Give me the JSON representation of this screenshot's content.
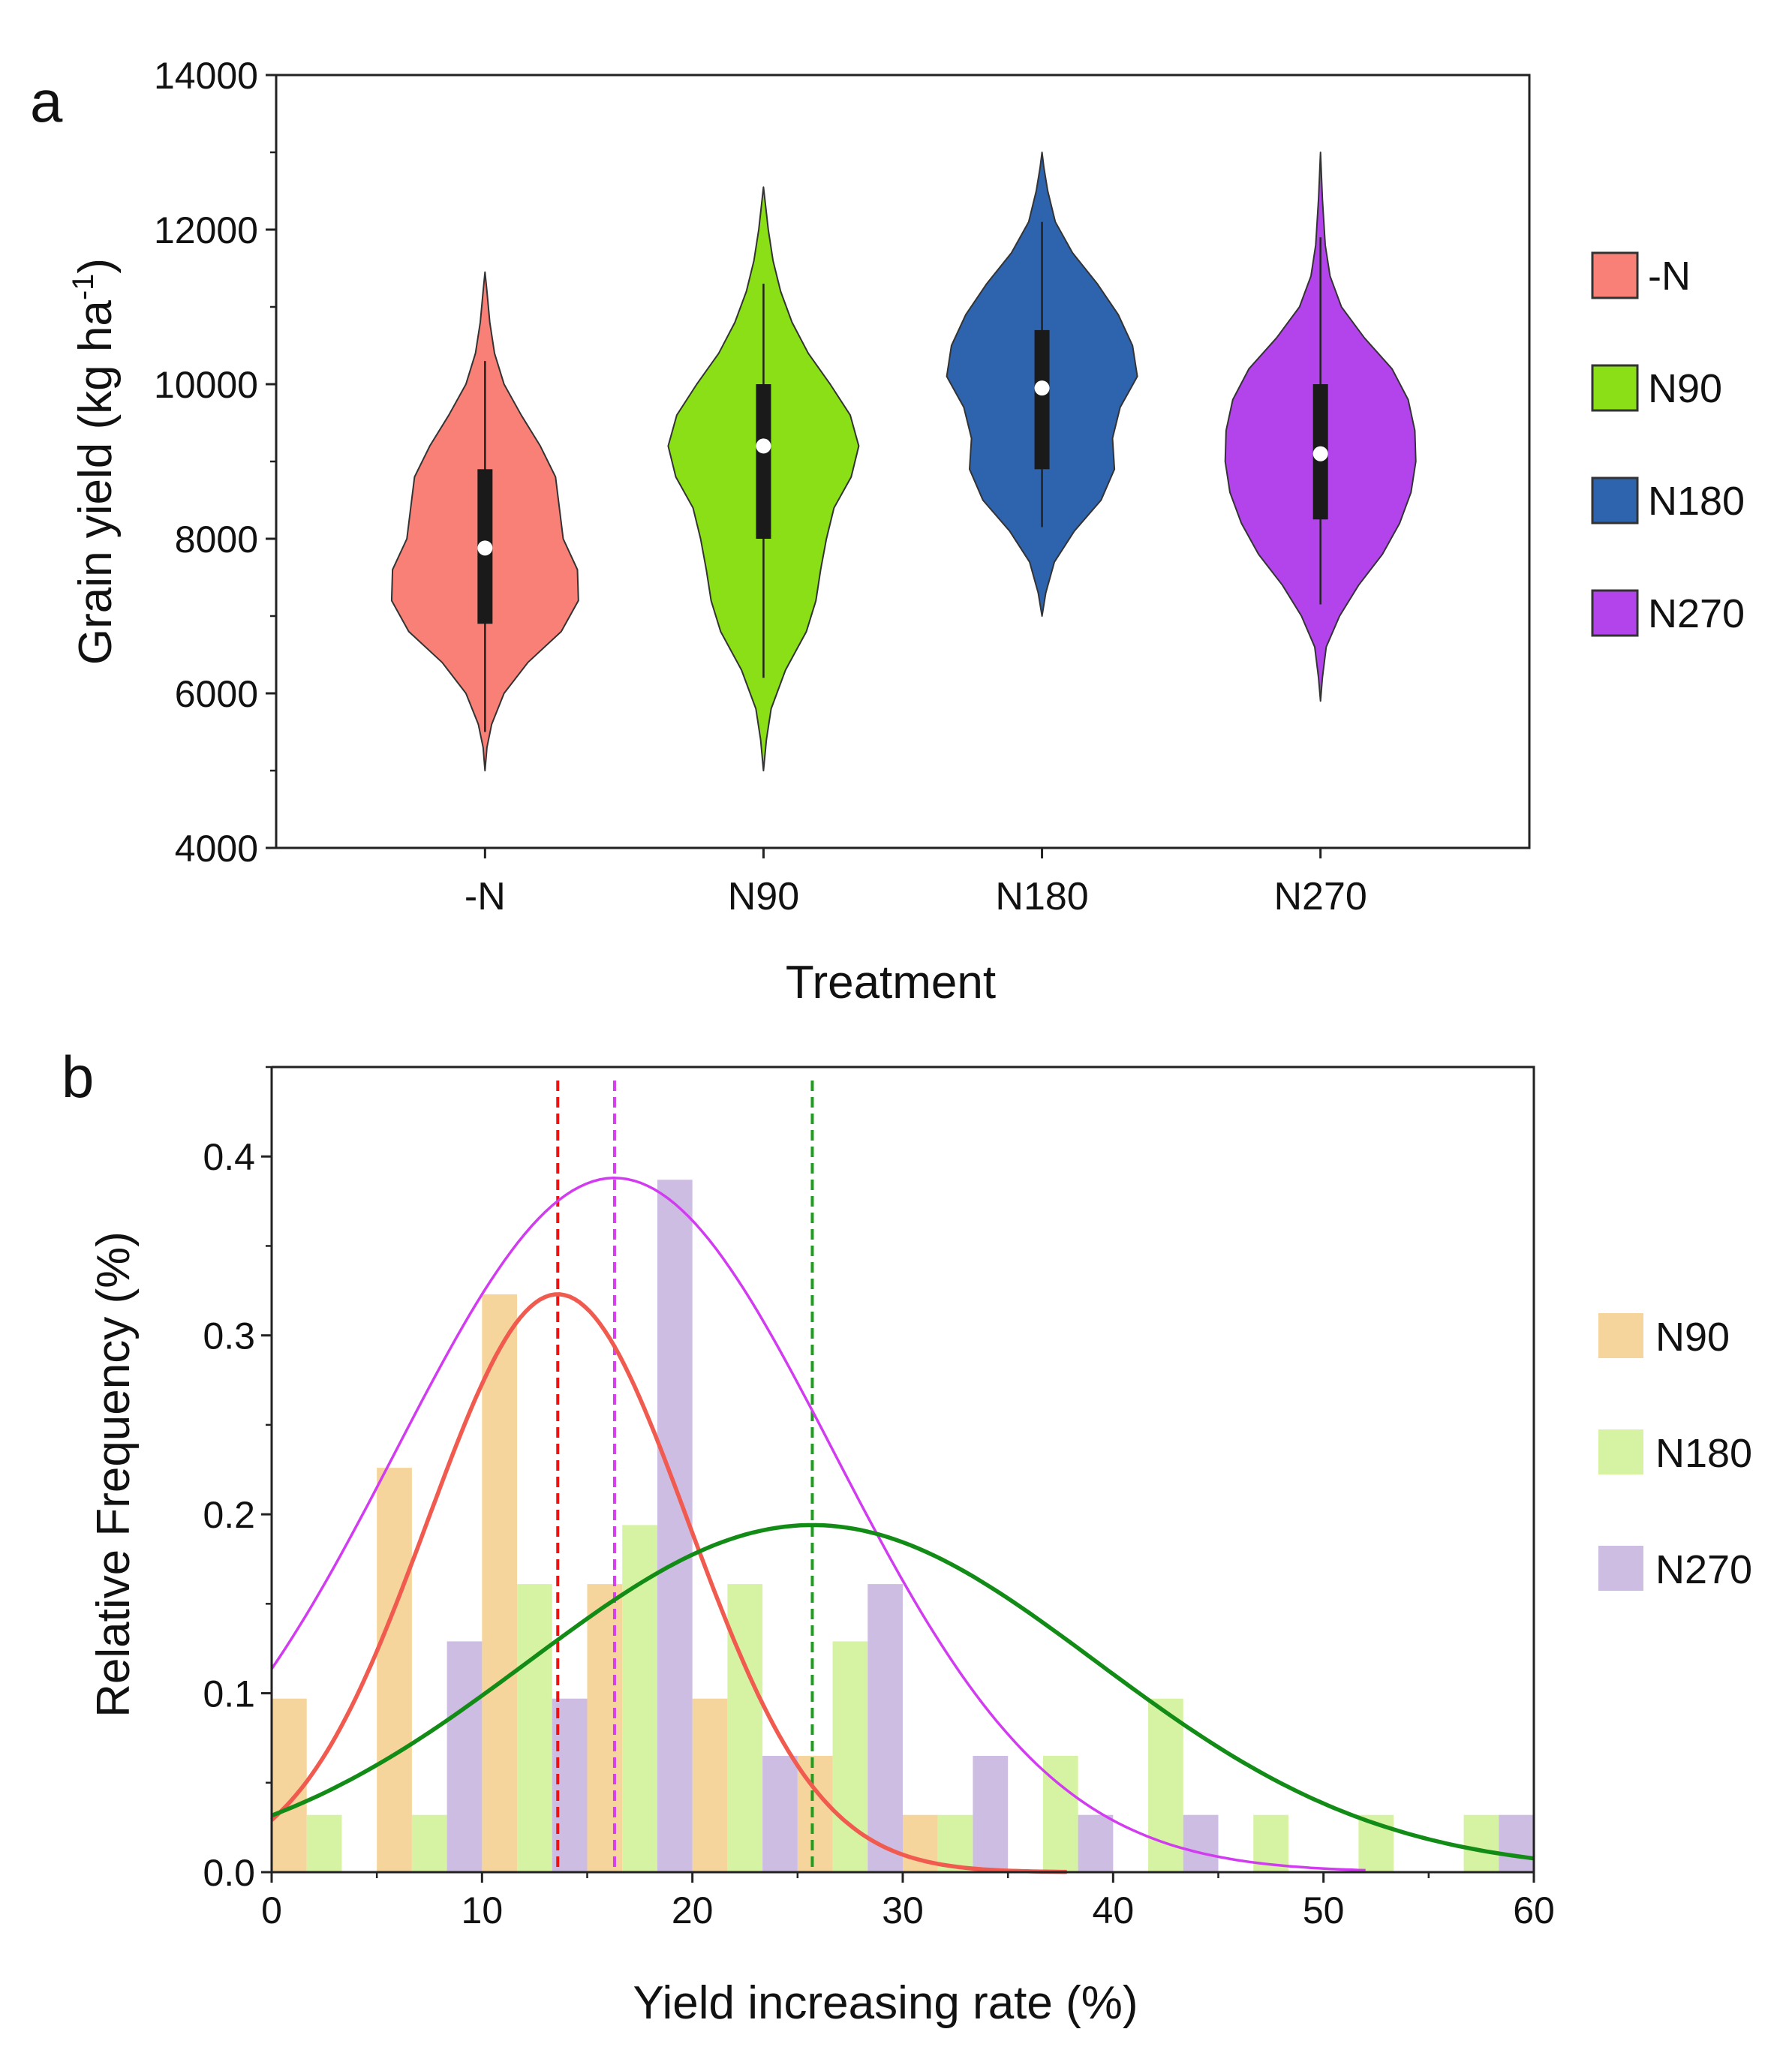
{
  "chart_data": [
    {
      "type": "violin",
      "panel_label": "a",
      "title": "",
      "xlabel": "Treatment",
      "ylabel_main": "Grain yield (kg ha",
      "ylabel_sup": "-1",
      "ylabel_tail": ")",
      "ylim": [
        4000,
        14000
      ],
      "yticks": [
        4000,
        6000,
        8000,
        10000,
        12000,
        14000
      ],
      "categories": [
        "-N",
        "N90",
        "N180",
        "N270"
      ],
      "series": [
        {
          "name": "-N",
          "color": "#F88077",
          "median": 7880,
          "q1": 6900,
          "q3": 8900,
          "whisker_low": 5500,
          "whisker_high": 10300,
          "profile": [
            [
              5000,
              0
            ],
            [
              5300,
              0.02
            ],
            [
              5600,
              0.07
            ],
            [
              6000,
              0.2
            ],
            [
              6400,
              0.45
            ],
            [
              6800,
              0.8
            ],
            [
              7200,
              0.98
            ],
            [
              7600,
              0.97
            ],
            [
              8000,
              0.82
            ],
            [
              8400,
              0.78
            ],
            [
              8800,
              0.74
            ],
            [
              9200,
              0.58
            ],
            [
              9600,
              0.38
            ],
            [
              10000,
              0.2
            ],
            [
              10400,
              0.1
            ],
            [
              10800,
              0.05
            ],
            [
              11200,
              0.02
            ],
            [
              11450,
              0
            ]
          ]
        },
        {
          "name": "N90",
          "color": "#8BDF17",
          "median": 9200,
          "q1": 8000,
          "q3": 10000,
          "whisker_low": 6200,
          "whisker_high": 11300,
          "profile": [
            [
              5000,
              0
            ],
            [
              5400,
              0.03
            ],
            [
              5800,
              0.08
            ],
            [
              6300,
              0.23
            ],
            [
              6800,
              0.45
            ],
            [
              7200,
              0.55
            ],
            [
              7600,
              0.6
            ],
            [
              8000,
              0.66
            ],
            [
              8400,
              0.74
            ],
            [
              8800,
              0.92
            ],
            [
              9200,
              1.0
            ],
            [
              9600,
              0.91
            ],
            [
              10000,
              0.7
            ],
            [
              10400,
              0.47
            ],
            [
              10800,
              0.3
            ],
            [
              11200,
              0.18
            ],
            [
              11600,
              0.1
            ],
            [
              12000,
              0.05
            ],
            [
              12550,
              0
            ]
          ]
        },
        {
          "name": "N180",
          "color": "#2E63AE",
          "median": 9950,
          "q1": 8900,
          "q3": 10700,
          "whisker_low": 8150,
          "whisker_high": 12100,
          "profile": [
            [
              7000,
              0
            ],
            [
              7300,
              0.04
            ],
            [
              7700,
              0.13
            ],
            [
              8100,
              0.34
            ],
            [
              8500,
              0.62
            ],
            [
              8900,
              0.76
            ],
            [
              9300,
              0.74
            ],
            [
              9700,
              0.82
            ],
            [
              10100,
              1.0
            ],
            [
              10500,
              0.95
            ],
            [
              10900,
              0.8
            ],
            [
              11300,
              0.58
            ],
            [
              11700,
              0.32
            ],
            [
              12100,
              0.14
            ],
            [
              12500,
              0.06
            ],
            [
              12800,
              0.02
            ],
            [
              13000,
              0
            ]
          ]
        },
        {
          "name": "N270",
          "color": "#B344EC",
          "median": 9100,
          "q1": 8250,
          "q3": 10000,
          "whisker_low": 7150,
          "whisker_high": 11900,
          "profile": [
            [
              5900,
              0
            ],
            [
              6200,
              0.02
            ],
            [
              6600,
              0.06
            ],
            [
              7000,
              0.2
            ],
            [
              7400,
              0.4
            ],
            [
              7800,
              0.65
            ],
            [
              8200,
              0.83
            ],
            [
              8600,
              0.95
            ],
            [
              9000,
              1.0
            ],
            [
              9400,
              0.99
            ],
            [
              9800,
              0.92
            ],
            [
              10200,
              0.75
            ],
            [
              10600,
              0.46
            ],
            [
              11000,
              0.22
            ],
            [
              11400,
              0.1
            ],
            [
              11800,
              0.05
            ],
            [
              12400,
              0.02
            ],
            [
              13000,
              0
            ]
          ]
        }
      ],
      "legend": [
        {
          "label": "-N",
          "color": "#F88077"
        },
        {
          "label": "N90",
          "color": "#8BDF17"
        },
        {
          "label": "N180",
          "color": "#2E63AE"
        },
        {
          "label": "N270",
          "color": "#B344EC"
        }
      ]
    },
    {
      "type": "histogram",
      "panel_label": "b",
      "title": "",
      "xlabel": "Yield increasing rate (%)",
      "ylabel": "Relative Frequency (%)",
      "xlim": [
        0,
        60
      ],
      "ylim": [
        0,
        0.45
      ],
      "xticks": [
        0,
        10,
        20,
        30,
        40,
        50,
        60
      ],
      "yticks": [
        "0.0",
        "0.1",
        "0.2",
        "0.3",
        "0.4"
      ],
      "bin_width": 5,
      "series": [
        {
          "name": "N90",
          "color": "#F5D59B",
          "curve_color": "#F05A4F",
          "mean": 13.6,
          "sd": 6.2,
          "mean_line_color": "#EE1111",
          "bins": [
            [
              0,
              0.097
            ],
            [
              5,
              0.226
            ],
            [
              10,
              0.323
            ],
            [
              15,
              0.161
            ],
            [
              20,
              0.097
            ],
            [
              25,
              0.065
            ],
            [
              30,
              0.032
            ]
          ]
        },
        {
          "name": "N180",
          "color": "#D6F3A3",
          "curve_color": "#128C17",
          "mean": 25.7,
          "sd": 13.5,
          "mean_line_color": "#1E9E1E",
          "bins": [
            [
              0,
              0.032
            ],
            [
              5,
              0.032
            ],
            [
              10,
              0.161
            ],
            [
              15,
              0.194
            ],
            [
              20,
              0.161
            ],
            [
              25,
              0.129
            ],
            [
              30,
              0.032
            ],
            [
              35,
              0.065
            ],
            [
              40,
              0.097
            ],
            [
              45,
              0.032
            ],
            [
              50,
              0.032
            ],
            [
              55,
              0.032
            ]
          ]
        },
        {
          "name": "N270",
          "color": "#CDBDE3",
          "curve_color": "#D23CF0",
          "mean": 16.3,
          "sd": 10.4,
          "mean_line_color": "#D73CF0",
          "bins": [
            [
              0,
              0
            ],
            [
              5,
              0.129
            ],
            [
              10,
              0.097
            ],
            [
              15,
              0.387
            ],
            [
              20,
              0.065
            ],
            [
              25,
              0.161
            ],
            [
              30,
              0.065
            ],
            [
              35,
              0.032
            ],
            [
              40,
              0.032
            ],
            [
              55,
              0.032
            ]
          ]
        }
      ],
      "curves": [
        {
          "name": "N90",
          "color": "#F05A4F",
          "mean": 13.6,
          "sd": 6.2,
          "peak": 0.323,
          "x_range": [
            0,
            37.8
          ]
        },
        {
          "name": "N270",
          "color": "#D23CF0",
          "mean": 16.3,
          "sd": 10.4,
          "peak": 0.388,
          "x_range": [
            0,
            52
          ]
        },
        {
          "name": "N180",
          "color": "#128C17",
          "mean": 25.7,
          "sd": 13.5,
          "peak": 0.194,
          "x_range": [
            0,
            60
          ]
        }
      ],
      "legend": [
        {
          "label": "N90",
          "color": "#F5D59B"
        },
        {
          "label": "N180",
          "color": "#D6F3A3"
        },
        {
          "label": "N270",
          "color": "#CDBDE3"
        }
      ]
    }
  ]
}
